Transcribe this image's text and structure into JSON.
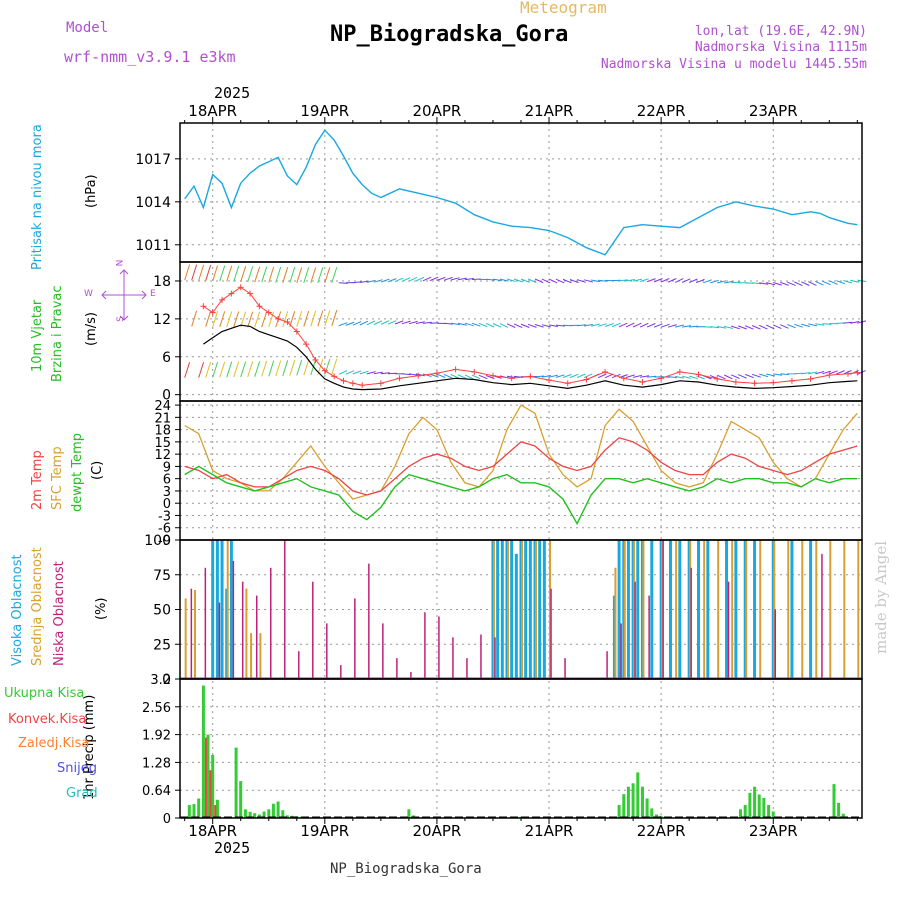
{
  "header": {
    "meteogram_label": "Meteogram",
    "model_label": "Model",
    "model_value": "wrf-nmm_v3.9.1 e3km",
    "station_title": "NP_Biogradska_Gora",
    "coords": "lon,lat (19.6E, 42.9N)",
    "altitude": "Nadmorska Visina 1115m",
    "model_altitude": "Nadmorska Visina u modelu 1445.55m",
    "footer_station": "NP_Biogradska_Gora",
    "watermark": "made by Angel"
  },
  "colors": {
    "pressure": "#1aa8e0",
    "wind_speed": "#000000",
    "gust": "#ff4040",
    "temp2m": "#ee4444",
    "sfc_temp": "#d9a030",
    "dewpt": "#22c022",
    "high_cloud": "#1aa8e0",
    "mid_cloud": "#d9a030",
    "low_cloud": "#c0207a",
    "total_precip": "#33cc33",
    "conv_precip": "#ee4444",
    "freezing": "#ff8030",
    "snow": "#5050e0",
    "hail": "#20c0c0",
    "label_purple": "#b050d0"
  },
  "time_axis": {
    "year": "2025",
    "dates": [
      "18APR",
      "19APR",
      "20APR",
      "21APR",
      "22APR",
      "23APR"
    ]
  },
  "panels": {
    "pressure": {
      "title": "Pritisak na nivou mora",
      "unit": "(hPa)"
    },
    "wind": {
      "title1": "10m Vjetar",
      "title2": "Brzina i Pravac",
      "unit": "(m/s)",
      "compass": {
        "n": "N",
        "s": "S",
        "e": "E",
        "w": "W"
      }
    },
    "temp": {
      "t2m": "2m Temp",
      "sfc": "SFC Temp",
      "dew": "dewpt Temp",
      "unit": "(C)"
    },
    "cloud": {
      "high": "Visoka Oblacnost",
      "mid": "Srednja Oblacnost",
      "low": "Niska Oblacnost",
      "unit": "(%)"
    },
    "precip": {
      "unit": "1hr Precip (mm)"
    }
  },
  "legend_precip": [
    "Ukupna Kisa",
    "Konvek.Kisa",
    "Zaledj.Kisa",
    "Snijeg",
    "Grad"
  ],
  "chart_data": [
    {
      "type": "line",
      "name": "pressure",
      "title": "Pritisak na nivou mora",
      "ylabel": "(hPa)",
      "ylim": [
        1009.8,
        1019.5
      ],
      "yticks": [
        1011,
        1014,
        1017
      ],
      "x_unit": "hours from 18APR 00Z",
      "series": [
        {
          "name": "MSLP",
          "x": [
            -6,
            -4,
            -2,
            0,
            2,
            4,
            6,
            8,
            10,
            12,
            14,
            16,
            18,
            20,
            22,
            24,
            26,
            28,
            30,
            32,
            34,
            36,
            40,
            44,
            48,
            52,
            56,
            60,
            64,
            68,
            72,
            76,
            80,
            84,
            88,
            92,
            96,
            100,
            104,
            108,
            112,
            116,
            120,
            124,
            128,
            130,
            132,
            134,
            136,
            138
          ],
          "y": [
            1014.2,
            1015.1,
            1013.6,
            1015.9,
            1015.3,
            1013.6,
            1015.3,
            1016.0,
            1016.5,
            1016.8,
            1017.1,
            1015.8,
            1015.2,
            1016.4,
            1018.0,
            1019.0,
            1018.3,
            1017.2,
            1016.0,
            1015.2,
            1014.6,
            1014.3,
            1014.9,
            1014.6,
            1014.3,
            1013.9,
            1013.1,
            1012.6,
            1012.3,
            1012.2,
            1012.0,
            1011.5,
            1010.8,
            1010.3,
            1012.2,
            1012.4,
            1012.3,
            1012.2,
            1012.9,
            1013.6,
            1014.0,
            1013.7,
            1013.5,
            1013.1,
            1013.3,
            1013.2,
            1012.9,
            1012.7,
            1012.5,
            1012.4
          ]
        }
      ]
    },
    {
      "type": "line",
      "name": "wind",
      "title": "10m Vjetar Brzina i Pravac",
      "ylabel": "(m/s)",
      "ylim": [
        -1,
        21
      ],
      "yticks": [
        0,
        6,
        12,
        18
      ],
      "series": [
        {
          "name": "Speed",
          "x": [
            -2,
            0,
            2,
            4,
            6,
            8,
            10,
            12,
            14,
            16,
            18,
            20,
            22,
            24,
            26,
            28,
            30,
            32,
            36,
            40,
            44,
            48,
            52,
            56,
            60,
            64,
            68,
            72,
            76,
            80,
            84,
            88,
            92,
            96,
            100,
            104,
            108,
            112,
            116,
            120,
            124,
            128,
            132,
            136,
            138
          ],
          "y": [
            8,
            9,
            10,
            10.5,
            11,
            10.8,
            10,
            9.5,
            9.0,
            8.5,
            7.5,
            6,
            4,
            2.5,
            1.8,
            1.2,
            0.9,
            0.8,
            0.9,
            1.4,
            1.8,
            2.2,
            2.6,
            2.4,
            1.9,
            1.6,
            1.8,
            1.4,
            1.0,
            1.5,
            2.2,
            1.5,
            1.2,
            1.6,
            2.2,
            2.0,
            1.5,
            1.2,
            1.0,
            1.1,
            1.3,
            1.5,
            1.9,
            2.1,
            2.2
          ]
        },
        {
          "name": "Gust",
          "x": [
            -2,
            0,
            2,
            4,
            6,
            8,
            10,
            12,
            14,
            16,
            18,
            20,
            22,
            24,
            26,
            28,
            30,
            32,
            36,
            40,
            44,
            48,
            52,
            56,
            60,
            64,
            68,
            72,
            76,
            80,
            84,
            88,
            92,
            96,
            100,
            104,
            108,
            112,
            116,
            120,
            124,
            128,
            132,
            136,
            138
          ],
          "y": [
            14,
            13,
            15,
            16,
            17,
            16,
            14,
            13,
            12,
            11.5,
            10,
            8,
            5.5,
            3.8,
            2.9,
            2.2,
            1.8,
            1.5,
            1.8,
            2.6,
            3.0,
            3.4,
            4.0,
            3.6,
            3.0,
            2.6,
            2.9,
            2.3,
            1.8,
            2.4,
            3.6,
            2.6,
            2.0,
            2.6,
            3.6,
            3.2,
            2.5,
            2.0,
            1.8,
            1.9,
            2.2,
            2.5,
            3.1,
            3.3,
            3.5
          ]
        }
      ]
    },
    {
      "type": "line",
      "name": "temperature",
      "ylabel": "(C)",
      "ylim": [
        -9,
        25
      ],
      "yticks": [
        -9,
        -6,
        -3,
        0,
        3,
        6,
        9,
        12,
        15,
        18,
        21,
        24
      ],
      "series": [
        {
          "name": "2m Temp",
          "x": [
            -6,
            -3,
            0,
            3,
            6,
            9,
            12,
            15,
            18,
            21,
            24,
            27,
            30,
            33,
            36,
            39,
            42,
            45,
            48,
            51,
            54,
            57,
            60,
            63,
            66,
            69,
            72,
            75,
            78,
            81,
            84,
            87,
            90,
            93,
            96,
            99,
            102,
            105,
            108,
            111,
            114,
            117,
            120,
            123,
            126,
            129,
            132,
            135,
            138
          ],
          "y": [
            9,
            8,
            6,
            7,
            5,
            4,
            4,
            6,
            8,
            9,
            8,
            6,
            3,
            2,
            3,
            6,
            9,
            11,
            12,
            11,
            9,
            8,
            9,
            12,
            15,
            14,
            11,
            9,
            8,
            9,
            13,
            16,
            15,
            13,
            10,
            8,
            7,
            7,
            10,
            12,
            11,
            9,
            8,
            7,
            8,
            10,
            12,
            13,
            14
          ]
        },
        {
          "name": "SFC Temp",
          "x": [
            -6,
            -3,
            0,
            3,
            6,
            9,
            12,
            15,
            18,
            21,
            24,
            27,
            30,
            33,
            36,
            39,
            42,
            45,
            48,
            51,
            54,
            57,
            60,
            63,
            66,
            69,
            72,
            75,
            78,
            81,
            84,
            87,
            90,
            93,
            96,
            99,
            102,
            105,
            108,
            111,
            114,
            117,
            120,
            123,
            126,
            129,
            132,
            135,
            138
          ],
          "y": [
            19,
            17,
            8,
            6,
            5,
            3,
            3,
            6,
            10,
            14,
            9,
            5,
            1,
            2,
            3,
            9,
            17,
            21,
            18,
            10,
            5,
            4,
            8,
            18,
            24,
            22,
            12,
            7,
            4,
            6,
            19,
            23,
            20,
            14,
            8,
            5,
            4,
            5,
            12,
            20,
            18,
            16,
            10,
            6,
            4,
            6,
            12,
            18,
            22
          ]
        },
        {
          "name": "dewpt Temp",
          "x": [
            -6,
            -3,
            0,
            3,
            6,
            9,
            12,
            15,
            18,
            21,
            24,
            27,
            30,
            33,
            36,
            39,
            42,
            45,
            48,
            51,
            54,
            57,
            60,
            63,
            66,
            69,
            72,
            75,
            78,
            81,
            84,
            87,
            90,
            93,
            96,
            99,
            102,
            105,
            108,
            111,
            114,
            117,
            120,
            123,
            126,
            129,
            132,
            135,
            138
          ],
          "y": [
            7,
            9,
            7,
            5,
            4,
            3,
            4,
            5,
            6,
            4,
            3,
            2,
            -2,
            -4,
            -1,
            4,
            7,
            6,
            5,
            4,
            3,
            4,
            6,
            7,
            5,
            5,
            4,
            1,
            -5,
            2,
            6,
            6,
            5,
            6,
            5,
            4,
            3,
            4,
            6,
            5,
            6,
            6,
            5,
            5,
            4,
            6,
            5,
            6,
            6
          ]
        }
      ]
    },
    {
      "type": "bar",
      "name": "cloudiness",
      "ylabel": "(%)",
      "ylim": [
        0,
        100
      ],
      "yticks": [
        0,
        25,
        50,
        75,
        100
      ],
      "series": [
        {
          "name": "Visoka Oblacnost",
          "x": [
            0,
            1,
            2,
            3,
            4,
            60,
            61,
            62,
            63,
            64,
            65,
            66,
            67,
            68,
            69,
            70,
            71,
            86,
            87,
            88,
            89,
            90,
            91,
            92,
            94,
            96,
            98,
            100,
            102,
            104,
            106,
            110,
            112,
            114,
            116,
            120,
            124,
            128
          ],
          "values": [
            100,
            100,
            100,
            65,
            100,
            100,
            100,
            100,
            100,
            100,
            90,
            100,
            100,
            100,
            100,
            100,
            100,
            60,
            100,
            100,
            100,
            100,
            100,
            100,
            100,
            100,
            100,
            100,
            100,
            100,
            100,
            100,
            100,
            100,
            100,
            100,
            100,
            100
          ]
        },
        {
          "name": "Srednja Oblacnost",
          "x": [
            -6,
            -4,
            3,
            7,
            8,
            10,
            60,
            63,
            66,
            69,
            72,
            86,
            88,
            90,
            92,
            96,
            99,
            102,
            105,
            108,
            111,
            114,
            117,
            120,
            123,
            126,
            129,
            132,
            135,
            138
          ],
          "values": [
            58,
            64,
            100,
            65,
            33,
            33,
            100,
            100,
            100,
            100,
            100,
            80,
            100,
            100,
            100,
            100,
            100,
            100,
            100,
            100,
            100,
            100,
            100,
            100,
            100,
            100,
            100,
            100,
            100,
            100
          ]
        },
        {
          "name": "Niska Oblacnost",
          "x": [
            -5,
            -2,
            1,
            4,
            6,
            9,
            12,
            15,
            18,
            21,
            24,
            27,
            30,
            33,
            36,
            39,
            42,
            45,
            48,
            51,
            54,
            57,
            60,
            72,
            75,
            84,
            87,
            90,
            93,
            96,
            102,
            110,
            120,
            130
          ],
          "values": [
            65,
            80,
            55,
            85,
            70,
            60,
            80,
            100,
            20,
            70,
            40,
            10,
            58,
            83,
            40,
            15,
            5,
            48,
            45,
            30,
            15,
            32,
            30,
            65,
            15,
            20,
            40,
            70,
            60,
            100,
            80,
            70,
            50,
            90
          ]
        }
      ]
    },
    {
      "type": "bar",
      "name": "precipitation",
      "ylabel": "1hr Precip (mm)",
      "ylim": [
        0,
        3.2
      ],
      "yticks": [
        0,
        0.64,
        1.28,
        1.92,
        2.56,
        3.2
      ],
      "series": [
        {
          "name": "Ukupna Kisa",
          "x": [
            -5,
            -4,
            -3,
            -2,
            -1,
            0,
            1,
            5,
            6,
            7,
            8,
            9,
            10,
            11,
            12,
            13,
            14,
            15,
            16,
            17,
            18,
            19,
            20,
            42,
            43,
            44,
            66,
            87,
            88,
            89,
            90,
            91,
            92,
            93,
            94,
            95,
            96,
            113,
            114,
            115,
            116,
            117,
            118,
            119,
            120,
            133,
            134,
            135
          ],
          "values": [
            0.3,
            0.32,
            0.45,
            3.05,
            1.92,
            1.45,
            0.42,
            1.62,
            0.85,
            0.2,
            0.14,
            0.11,
            0.08,
            0.15,
            0.2,
            0.33,
            0.38,
            0.18,
            0.06,
            0.05,
            0.04,
            0.03,
            0.03,
            0.2,
            0.06,
            0.03,
            0.03,
            0.3,
            0.55,
            0.72,
            0.8,
            1.05,
            0.72,
            0.45,
            0.22,
            0.08,
            0.05,
            0.2,
            0.3,
            0.58,
            0.72,
            0.54,
            0.46,
            0.3,
            0.15,
            0.78,
            0.35,
            0.1
          ]
        },
        {
          "name": "Konvek.Kisa",
          "x": [
            -2,
            -1,
            0
          ],
          "values": [
            1.85,
            1.1,
            0.3
          ]
        }
      ]
    }
  ]
}
